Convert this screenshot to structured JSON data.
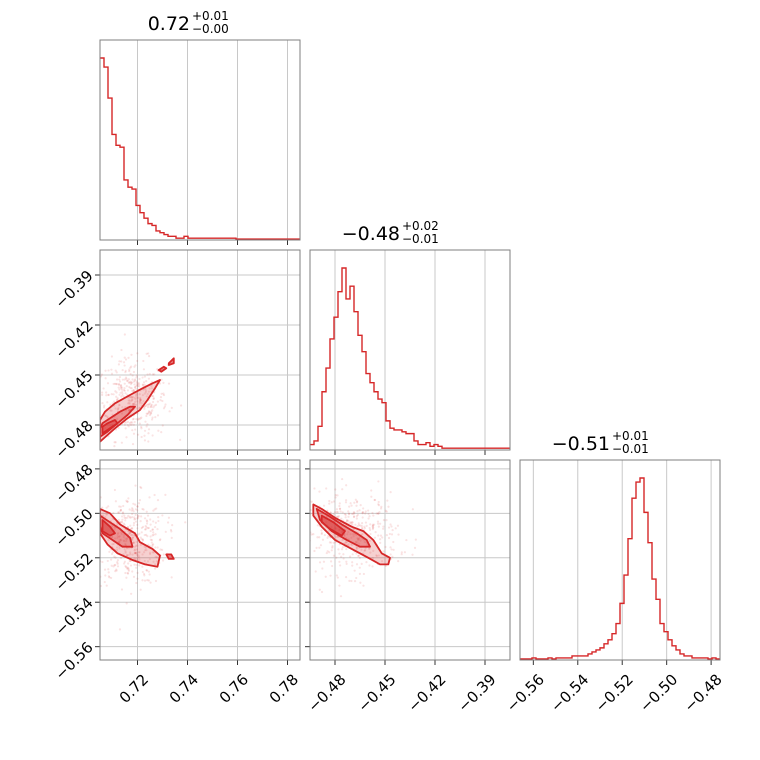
{
  "chart_data": {
    "type": "corner",
    "color": "#d62728",
    "grid": true,
    "parameters": [
      {
        "id": "p0",
        "title": {
          "median": "0.72",
          "plus": "+0.01",
          "minus": "−0.00"
        },
        "range": [
          0.705,
          0.785
        ],
        "ticks": [
          0.72,
          0.74,
          0.76,
          0.78
        ],
        "tick_labels": [
          "0.72",
          "0.74",
          "0.76",
          "0.78"
        ]
      },
      {
        "id": "p1",
        "title": {
          "median": "−0.48",
          "plus": "+0.02",
          "minus": "−0.01"
        },
        "range": [
          -0.495,
          -0.375
        ],
        "ticks": [
          -0.48,
          -0.45,
          -0.42,
          -0.39
        ],
        "tick_labels": [
          "−0.48",
          "−0.45",
          "−0.42",
          "−0.39"
        ]
      },
      {
        "id": "p2",
        "title": {
          "median": "−0.51",
          "plus": "+0.01",
          "minus": "−0.01"
        },
        "range": [
          -0.566,
          -0.476
        ],
        "ticks": [
          -0.56,
          -0.54,
          -0.52,
          -0.5,
          -0.48
        ],
        "tick_labels": [
          "−0.56",
          "−0.54",
          "−0.52",
          "−0.50",
          "−0.48"
        ]
      }
    ],
    "histograms": [
      {
        "param": "p0",
        "bin_start": 0.705,
        "bin_width": 0.0016,
        "counts": [
          100,
          95,
          78,
          58,
          52,
          51,
          33,
          29,
          28,
          19,
          15,
          12,
          9,
          8,
          5,
          4,
          3,
          2,
          2,
          1,
          1,
          2,
          1,
          1,
          1,
          1,
          1,
          1,
          1,
          1,
          1,
          1,
          1,
          1,
          0.5,
          0.5,
          0.5,
          0.5,
          0.5,
          0.5,
          0.5,
          0.5,
          0.5,
          0.5,
          0.5,
          0.5,
          0.5,
          0.5,
          0.5,
          0.5
        ]
      },
      {
        "param": "p1",
        "bin_start": -0.495,
        "bin_width": 0.0024,
        "counts": [
          3,
          5,
          13,
          32,
          45,
          61,
          73,
          87,
          100,
          83,
          90,
          76,
          63,
          54,
          42,
          37,
          32,
          28,
          26,
          16,
          12,
          11,
          11,
          10,
          9,
          9,
          5,
          3,
          3,
          4,
          2,
          3,
          2,
          1,
          1,
          1,
          1,
          1,
          1,
          1,
          1,
          1,
          1,
          1,
          1,
          1,
          1,
          1,
          1,
          1
        ]
      },
      {
        "param": "p2",
        "bin_start": -0.566,
        "bin_width": 0.0018,
        "counts": [
          0.5,
          0.5,
          0.5,
          1,
          0.5,
          0.5,
          0.5,
          1,
          0.5,
          1,
          1,
          1,
          1,
          2,
          2,
          2,
          2,
          3,
          4,
          5,
          6,
          8,
          10,
          13,
          18,
          28,
          42,
          60,
          80,
          88,
          90,
          73,
          58,
          40,
          30,
          18,
          14,
          10,
          7,
          5,
          3,
          2,
          2,
          1,
          1,
          1,
          1,
          0.5,
          1,
          0.5
        ]
      }
    ],
    "joint": [
      {
        "x": "p0",
        "y": "p1",
        "center": [
          0.709,
          -0.483
        ],
        "scatter_center": [
          0.718,
          -0.465
        ],
        "scatter_spread": [
          0.007,
          0.012
        ],
        "levels": [
          [
            [
              0.705,
              -0.49
            ],
            [
              0.708,
              -0.486
            ],
            [
              0.711,
              -0.482
            ],
            [
              0.716,
              -0.476
            ],
            [
              0.721,
              -0.471
            ],
            [
              0.724,
              -0.465
            ],
            [
              0.727,
              -0.458
            ],
            [
              0.729,
              -0.453
            ],
            [
              0.726,
              -0.455
            ],
            [
              0.722,
              -0.458
            ],
            [
              0.717,
              -0.462
            ],
            [
              0.711,
              -0.467
            ],
            [
              0.707,
              -0.472
            ],
            [
              0.705,
              -0.477
            ]
          ],
          [
            [
              0.705,
              -0.487
            ],
            [
              0.708,
              -0.484
            ],
            [
              0.712,
              -0.479
            ],
            [
              0.716,
              -0.474
            ],
            [
              0.719,
              -0.469
            ],
            [
              0.717,
              -0.469
            ],
            [
              0.713,
              -0.472
            ],
            [
              0.709,
              -0.476
            ],
            [
              0.706,
              -0.479
            ],
            [
              0.705,
              -0.482
            ]
          ],
          [
            [
              0.706,
              -0.485
            ],
            [
              0.709,
              -0.482
            ],
            [
              0.712,
              -0.479
            ],
            [
              0.711,
              -0.477
            ],
            [
              0.708,
              -0.479
            ],
            [
              0.706,
              -0.481
            ]
          ]
        ],
        "islands": [
          [
            [
              0.7285,
              -0.447
            ],
            [
              0.7305,
              -0.445
            ],
            [
              0.7315,
              -0.446
            ],
            [
              0.7295,
              -0.448
            ]
          ],
          [
            [
              0.7325,
              -0.443
            ],
            [
              0.7345,
              -0.44
            ],
            [
              0.7345,
              -0.443
            ],
            [
              0.7325,
              -0.444
            ]
          ]
        ]
      },
      {
        "x": "p0",
        "y": "p2",
        "center": [
          0.71,
          -0.505
        ],
        "scatter_center": [
          0.717,
          -0.512
        ],
        "scatter_spread": [
          0.007,
          0.01
        ],
        "levels": [
          [
            [
              0.705,
              -0.498
            ],
            [
              0.709,
              -0.5
            ],
            [
              0.713,
              -0.505
            ],
            [
              0.719,
              -0.509
            ],
            [
              0.721,
              -0.513
            ],
            [
              0.726,
              -0.516
            ],
            [
              0.729,
              -0.519
            ],
            [
              0.728,
              -0.524
            ],
            [
              0.723,
              -0.523
            ],
            [
              0.718,
              -0.521
            ],
            [
              0.712,
              -0.518
            ],
            [
              0.708,
              -0.514
            ],
            [
              0.705,
              -0.509
            ]
          ],
          [
            [
              0.705,
              -0.501
            ],
            [
              0.709,
              -0.504
            ],
            [
              0.713,
              -0.507
            ],
            [
              0.717,
              -0.511
            ],
            [
              0.718,
              -0.515
            ],
            [
              0.714,
              -0.515
            ],
            [
              0.71,
              -0.512
            ],
            [
              0.706,
              -0.509
            ],
            [
              0.705,
              -0.506
            ]
          ],
          [
            [
              0.706,
              -0.503
            ],
            [
              0.709,
              -0.506
            ],
            [
              0.711,
              -0.509
            ],
            [
              0.709,
              -0.51
            ],
            [
              0.706,
              -0.508
            ]
          ]
        ],
        "islands": [
          [
            [
              0.7315,
              -0.5185
            ],
            [
              0.7335,
              -0.5185
            ],
            [
              0.7345,
              -0.5205
            ],
            [
              0.7325,
              -0.5205
            ]
          ]
        ]
      },
      {
        "x": "p1",
        "y": "p2",
        "center": [
          -0.484,
          -0.503
        ],
        "scatter_center": [
          -0.47,
          -0.509
        ],
        "scatter_spread": [
          0.014,
          0.009
        ],
        "levels": [
          [
            [
              -0.493,
              -0.496
            ],
            [
              -0.488,
              -0.498
            ],
            [
              -0.48,
              -0.502
            ],
            [
              -0.47,
              -0.506
            ],
            [
              -0.463,
              -0.508
            ],
            [
              -0.457,
              -0.512
            ],
            [
              -0.452,
              -0.518
            ],
            [
              -0.447,
              -0.52
            ],
            [
              -0.448,
              -0.523
            ],
            [
              -0.453,
              -0.523
            ],
            [
              -0.46,
              -0.52
            ],
            [
              -0.47,
              -0.516
            ],
            [
              -0.48,
              -0.512
            ],
            [
              -0.488,
              -0.506
            ],
            [
              -0.493,
              -0.501
            ]
          ],
          [
            [
              -0.491,
              -0.498
            ],
            [
              -0.484,
              -0.501
            ],
            [
              -0.476,
              -0.505
            ],
            [
              -0.467,
              -0.509
            ],
            [
              -0.461,
              -0.512
            ],
            [
              -0.459,
              -0.515
            ],
            [
              -0.465,
              -0.515
            ],
            [
              -0.473,
              -0.512
            ],
            [
              -0.482,
              -0.508
            ],
            [
              -0.489,
              -0.503
            ]
          ],
          [
            [
              -0.488,
              -0.501
            ],
            [
              -0.481,
              -0.504
            ],
            [
              -0.474,
              -0.508
            ],
            [
              -0.476,
              -0.51
            ],
            [
              -0.483,
              -0.507
            ],
            [
              -0.488,
              -0.504
            ]
          ]
        ],
        "islands": []
      }
    ]
  }
}
